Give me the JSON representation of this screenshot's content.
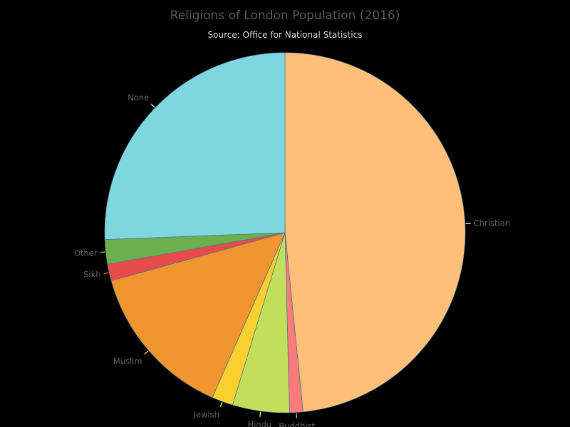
{
  "chart_data": {
    "type": "pie",
    "title": "Religions of London Population (2016)",
    "subtitle": "Source: Office for National Statistics",
    "slices": [
      {
        "name": "Christian",
        "value": 48.4,
        "color": "#ffbf78"
      },
      {
        "name": "Buddhist",
        "value": 1.2,
        "color": "#ff7b7b"
      },
      {
        "name": "Hindu",
        "value": 5.1,
        "color": "#c2df5c"
      },
      {
        "name": "Jewish",
        "value": 1.9,
        "color": "#fbd02e"
      },
      {
        "name": "Muslim",
        "value": 14.1,
        "color": "#f3952f"
      },
      {
        "name": "Sikh",
        "value": 1.5,
        "color": "#e84b4b"
      },
      {
        "name": "Other",
        "value": 2.2,
        "color": "#6ab04c"
      },
      {
        "name": "None",
        "value": 25.6,
        "color": "#7dd6e0"
      }
    ],
    "start": "12 o'clock",
    "direction": "clockwise"
  }
}
